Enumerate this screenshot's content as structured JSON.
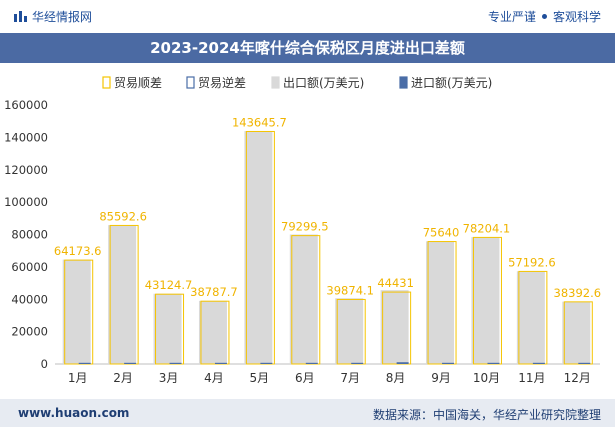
{
  "header": {
    "brand": "华经情报网",
    "tag1": "专业严谨",
    "tag2": "客观科学"
  },
  "title": "2023-2024年喀什综合保税区月度进出口差额",
  "footer": {
    "website": "www.huaon.com",
    "source": "数据来源：中国海关，华经产业研究院整理"
  },
  "colors": {
    "export": "#d9d9d9",
    "import": "#4a6da7",
    "surplus_border": "#f5c400",
    "deficit_border": "#4a6da7",
    "label": "#f0b400",
    "title_bg": "#4b6aa3"
  },
  "chart_data": {
    "type": "bar",
    "categories": [
      "1月",
      "2月",
      "3月",
      "4月",
      "5月",
      "6月",
      "7月",
      "8月",
      "9月",
      "10月",
      "11月",
      "12月"
    ],
    "series": [
      {
        "name": "贸易顺差",
        "values": [
          64173.6,
          85592.6,
          43124.7,
          38787.7,
          143645.7,
          79299.5,
          39874.1,
          44431,
          75640,
          78204.1,
          57192.6,
          38392.6
        ]
      },
      {
        "name": "贸易逆差",
        "values": [
          0,
          0,
          0,
          0,
          0,
          0,
          0,
          0,
          0,
          0,
          0,
          0
        ]
      },
      {
        "name": "出口额(万美元)",
        "values": [
          64500,
          85800,
          43400,
          39000,
          143900,
          80000,
          40600,
          45600,
          75800,
          78400,
          57300,
          38500
        ]
      },
      {
        "name": "进口额(万美元)",
        "values": [
          300,
          300,
          300,
          250,
          300,
          700,
          700,
          1100,
          200,
          200,
          150,
          150
        ]
      }
    ],
    "data_labels": [
      "64173.6",
      "85592.6",
      "43124.7",
      "38787.7",
      "143645.7",
      "79299.5",
      "39874.1",
      "44431",
      "75640",
      "78204.1",
      "57192.6",
      "38392.6"
    ],
    "yticks": [
      "0",
      "20000",
      "40000",
      "60000",
      "80000",
      "100000",
      "120000",
      "140000",
      "160000"
    ],
    "ylim": [
      0,
      160000
    ],
    "legend_position": "top",
    "grid": false
  }
}
